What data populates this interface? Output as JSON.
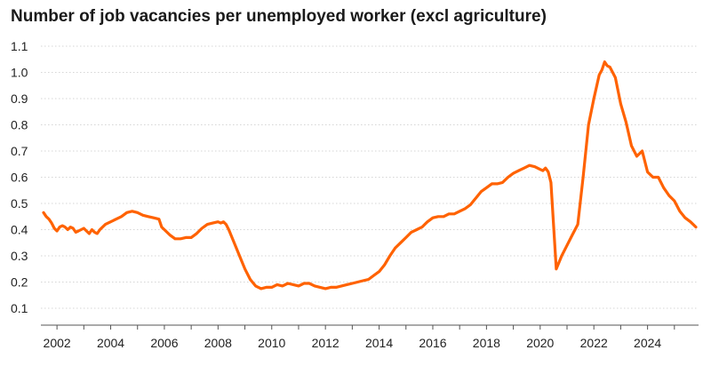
{
  "chart_data": {
    "type": "line",
    "title": "Number of job vacancies per unemployed worker (excl agriculture)",
    "xlabel": "",
    "ylabel": "",
    "xlim": [
      2001.4,
      2025.9
    ],
    "ylim": [
      0.1,
      1.1
    ],
    "y_ticks": [
      0.1,
      0.2,
      0.3,
      0.4,
      0.5,
      0.6,
      0.7,
      0.8,
      0.9,
      1.0,
      1.1
    ],
    "y_tick_labels": [
      "0.1",
      "0.2",
      "0.3",
      "0.4",
      "0.5",
      "0.6",
      "0.7",
      "0.8",
      "0.9",
      "1.0",
      "1.1"
    ],
    "x_ticks": [
      2002,
      2004,
      2006,
      2008,
      2010,
      2012,
      2014,
      2016,
      2018,
      2020,
      2022,
      2024
    ],
    "x_tick_labels": [
      "2002",
      "2004",
      "2006",
      "2008",
      "2010",
      "2012",
      "2014",
      "2016",
      "2018",
      "2020",
      "2022",
      "2024"
    ],
    "grid": "horizontal",
    "legend": "none",
    "color": "#ff6200",
    "series": [
      {
        "x": [
          2001.5,
          2001.6,
          2001.7,
          2001.8,
          2001.9,
          2002.0,
          2002.1,
          2002.2,
          2002.3,
          2002.4,
          2002.5,
          2002.6,
          2002.7,
          2002.8,
          2002.9,
          2003.0,
          2003.1,
          2003.2,
          2003.3,
          2003.4,
          2003.5,
          2003.6,
          2003.8,
          2004.0,
          2004.2,
          2004.4,
          2004.6,
          2004.8,
          2005.0,
          2005.2,
          2005.4,
          2005.6,
          2005.8,
          2005.9,
          2006.0,
          2006.2,
          2006.4,
          2006.6,
          2006.8,
          2007.0,
          2007.2,
          2007.4,
          2007.6,
          2007.8,
          2008.0,
          2008.1,
          2008.2,
          2008.3,
          2008.4,
          2008.6,
          2008.8,
          2009.0,
          2009.2,
          2009.4,
          2009.6,
          2009.8,
          2010.0,
          2010.2,
          2010.4,
          2010.6,
          2010.8,
          2011.0,
          2011.2,
          2011.4,
          2011.6,
          2011.8,
          2012.0,
          2012.2,
          2012.4,
          2012.6,
          2012.8,
          2013.0,
          2013.2,
          2013.4,
          2013.6,
          2013.8,
          2014.0,
          2014.2,
          2014.4,
          2014.6,
          2014.8,
          2015.0,
          2015.2,
          2015.4,
          2015.6,
          2015.8,
          2016.0,
          2016.2,
          2016.4,
          2016.6,
          2016.8,
          2017.0,
          2017.2,
          2017.4,
          2017.6,
          2017.8,
          2018.0,
          2018.2,
          2018.4,
          2018.6,
          2018.8,
          2019.0,
          2019.2,
          2019.4,
          2019.6,
          2019.8,
          2020.0,
          2020.1,
          2020.2,
          2020.3,
          2020.4,
          2020.6,
          2020.8,
          2021.0,
          2021.2,
          2021.4,
          2021.6,
          2021.8,
          2022.0,
          2022.2,
          2022.3,
          2022.4,
          2022.5,
          2022.6,
          2022.8,
          2023.0,
          2023.2,
          2023.4,
          2023.6,
          2023.8,
          2024.0,
          2024.2,
          2024.4,
          2024.6,
          2024.8,
          2025.0,
          2025.2,
          2025.4,
          2025.6,
          2025.8
        ],
        "y": [
          0.465,
          0.45,
          0.44,
          0.425,
          0.405,
          0.395,
          0.41,
          0.415,
          0.41,
          0.4,
          0.41,
          0.405,
          0.39,
          0.395,
          0.4,
          0.405,
          0.395,
          0.385,
          0.4,
          0.39,
          0.385,
          0.4,
          0.42,
          0.43,
          0.44,
          0.45,
          0.465,
          0.47,
          0.465,
          0.455,
          0.45,
          0.445,
          0.44,
          0.41,
          0.4,
          0.38,
          0.365,
          0.365,
          0.37,
          0.37,
          0.385,
          0.405,
          0.42,
          0.425,
          0.43,
          0.425,
          0.43,
          0.42,
          0.4,
          0.35,
          0.3,
          0.25,
          0.21,
          0.185,
          0.175,
          0.18,
          0.18,
          0.19,
          0.185,
          0.195,
          0.19,
          0.185,
          0.195,
          0.195,
          0.185,
          0.18,
          0.175,
          0.18,
          0.18,
          0.185,
          0.19,
          0.195,
          0.2,
          0.205,
          0.21,
          0.225,
          0.24,
          0.265,
          0.3,
          0.33,
          0.35,
          0.37,
          0.39,
          0.4,
          0.41,
          0.43,
          0.445,
          0.45,
          0.45,
          0.46,
          0.46,
          0.47,
          0.48,
          0.495,
          0.52,
          0.545,
          0.56,
          0.575,
          0.575,
          0.58,
          0.6,
          0.615,
          0.625,
          0.635,
          0.645,
          0.64,
          0.63,
          0.625,
          0.635,
          0.62,
          0.58,
          0.25,
          0.3,
          0.34,
          0.38,
          0.42,
          0.6,
          0.8,
          0.9,
          0.99,
          1.01,
          1.04,
          1.025,
          1.02,
          0.98,
          0.88,
          0.81,
          0.72,
          0.68,
          0.7,
          0.62,
          0.6,
          0.6,
          0.56,
          0.53,
          0.51,
          0.47,
          0.445,
          0.43,
          0.41
        ]
      }
    ]
  }
}
